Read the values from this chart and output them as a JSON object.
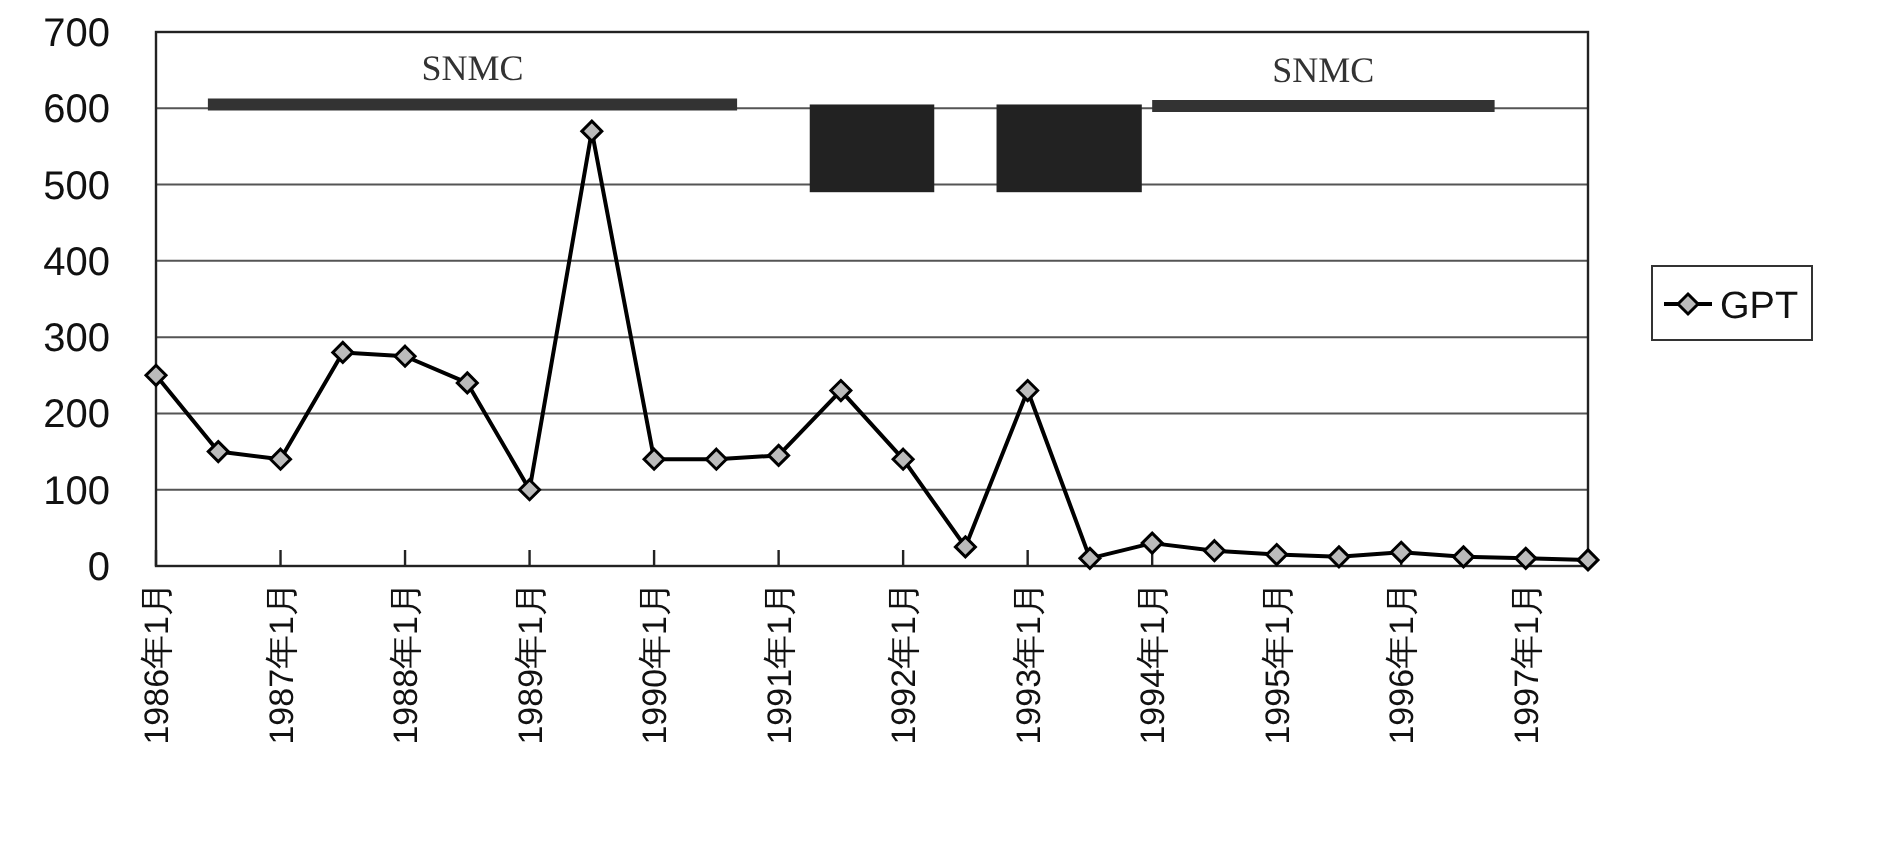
{
  "chart_data": {
    "type": "line",
    "x": [
      "1986-01",
      "1986-07",
      "1987-01",
      "1987-07",
      "1988-01",
      "1988-07",
      "1989-01",
      "1989-07",
      "1990-01",
      "1990-07",
      "1991-01",
      "1991-07",
      "1992-01",
      "1992-07",
      "1993-01",
      "1993-07",
      "1994-01",
      "1994-07",
      "1995-01",
      "1995-07",
      "1996-01",
      "1996-07",
      "1997-01",
      "1997-07"
    ],
    "series": [
      {
        "name": "GPT",
        "color": "#000000",
        "values": [
          250,
          150,
          140,
          280,
          275,
          240,
          100,
          570,
          140,
          140,
          145,
          230,
          140,
          25,
          230,
          10,
          30,
          20,
          15,
          12,
          18,
          12,
          10,
          8
        ]
      },
      {
        "name": "SNMC",
        "type": "line",
        "marker": "none",
        "color": "#333333",
        "x": [
          "1986-06",
          "1990-09"
        ],
        "values": [
          605,
          605
        ]
      },
      {
        "name": "SNMC",
        "type": "line",
        "marker": "none",
        "color": "#333333",
        "x": [
          "1994-01",
          "1996-10"
        ],
        "values": [
          603,
          603
        ]
      }
    ],
    "xlim": [
      "1986-01",
      "1997-07"
    ],
    "xticks": [
      {
        "value": "1986-01",
        "label": "1986年1月"
      },
      {
        "value": "1987-01",
        "label": "1987年1月"
      },
      {
        "value": "1988-01",
        "label": "1988年1月"
      },
      {
        "value": "1989-01",
        "label": "1989年1月"
      },
      {
        "value": "1990-01",
        "label": "1990年1月"
      },
      {
        "value": "1991-01",
        "label": "1991年1月"
      },
      {
        "value": "1992-01",
        "label": "1992年1月"
      },
      {
        "value": "1993-01",
        "label": "1993年1月"
      },
      {
        "value": "1994-01",
        "label": "1994年1月"
      },
      {
        "value": "1995-01",
        "label": "1995年1月"
      },
      {
        "value": "1996-01",
        "label": "1996年1月"
      },
      {
        "value": "1997-01",
        "label": "1997年1月"
      }
    ],
    "ylim": [
      0,
      700
    ],
    "yticks": [
      0,
      100,
      200,
      300,
      400,
      500,
      600,
      700
    ],
    "grid": "y",
    "legend": "right",
    "marker": "diamond",
    "line_style": "solid",
    "bands": [
      {
        "axis": "x",
        "from": "1991-04",
        "to": "1992-04",
        "color": "#222222"
      },
      {
        "axis": "x",
        "from": "1992-10",
        "to": "1993-12",
        "color": "#222222"
      }
    ]
  }
}
